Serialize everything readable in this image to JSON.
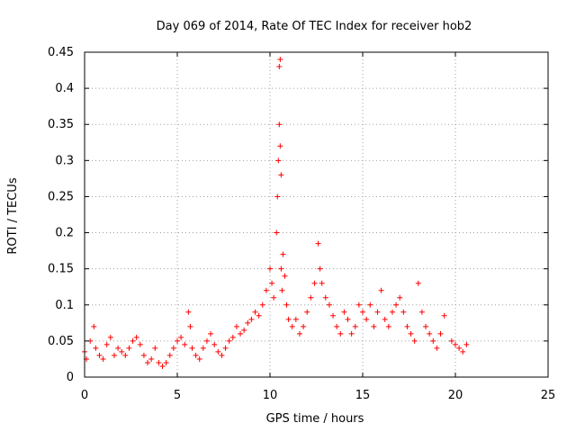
{
  "chart_data": {
    "type": "scatter",
    "title": "Day 069 of 2014, Rate Of TEC Index for receiver hob2",
    "xlabel": "GPS time / hours",
    "ylabel": "ROTI / TECUs",
    "xlim": [
      0,
      25
    ],
    "ylim": [
      0,
      0.45
    ],
    "xticks": [
      "0",
      "5",
      "10",
      "15",
      "20",
      "25"
    ],
    "yticks": [
      "0",
      "0.05",
      "0.1",
      "0.15",
      "0.2",
      "0.25",
      "0.3",
      "0.35",
      "0.4",
      "0.45"
    ],
    "grid": true,
    "marker": "+",
    "color": "#ff0000",
    "series": [
      {
        "name": "ROTI",
        "x": [
          0.0,
          0.1,
          0.3,
          0.5,
          0.6,
          0.8,
          1.0,
          1.2,
          1.4,
          1.6,
          1.8,
          2.0,
          2.2,
          2.4,
          2.6,
          2.8,
          3.0,
          3.2,
          3.4,
          3.6,
          3.8,
          4.0,
          4.2,
          4.4,
          4.6,
          4.8,
          5.0,
          5.2,
          5.4,
          5.6,
          5.7,
          5.8,
          6.0,
          6.2,
          6.4,
          6.6,
          6.8,
          7.0,
          7.2,
          7.4,
          7.6,
          7.8,
          8.0,
          8.2,
          8.4,
          8.6,
          8.8,
          9.0,
          9.2,
          9.4,
          9.6,
          9.8,
          10.0,
          10.1,
          10.2,
          10.35,
          10.4,
          10.45,
          10.5,
          10.5,
          10.55,
          10.55,
          10.6,
          10.6,
          10.65,
          10.7,
          10.8,
          10.9,
          11.0,
          11.2,
          11.4,
          11.6,
          11.8,
          12.0,
          12.2,
          12.4,
          12.6,
          12.7,
          12.8,
          13.0,
          13.2,
          13.4,
          13.6,
          13.8,
          14.0,
          14.2,
          14.4,
          14.6,
          14.8,
          15.0,
          15.2,
          15.4,
          15.6,
          15.8,
          16.0,
          16.2,
          16.4,
          16.6,
          16.8,
          17.0,
          17.2,
          17.4,
          17.6,
          17.8,
          18.0,
          18.2,
          18.4,
          18.6,
          18.8,
          19.0,
          19.2,
          19.4,
          19.8,
          20.0,
          20.2,
          20.4,
          20.6
        ],
        "y": [
          0.035,
          0.025,
          0.05,
          0.07,
          0.04,
          0.03,
          0.025,
          0.045,
          0.055,
          0.03,
          0.04,
          0.035,
          0.03,
          0.04,
          0.05,
          0.055,
          0.045,
          0.03,
          0.02,
          0.025,
          0.04,
          0.02,
          0.015,
          0.02,
          0.03,
          0.04,
          0.05,
          0.055,
          0.045,
          0.09,
          0.07,
          0.04,
          0.03,
          0.025,
          0.04,
          0.05,
          0.06,
          0.045,
          0.035,
          0.03,
          0.04,
          0.05,
          0.055,
          0.07,
          0.06,
          0.065,
          0.075,
          0.08,
          0.09,
          0.085,
          0.1,
          0.12,
          0.15,
          0.13,
          0.11,
          0.2,
          0.25,
          0.3,
          0.35,
          0.43,
          0.44,
          0.32,
          0.28,
          0.15,
          0.12,
          0.17,
          0.14,
          0.1,
          0.08,
          0.07,
          0.08,
          0.06,
          0.07,
          0.09,
          0.11,
          0.13,
          0.185,
          0.15,
          0.13,
          0.11,
          0.1,
          0.085,
          0.07,
          0.06,
          0.09,
          0.08,
          0.06,
          0.07,
          0.1,
          0.09,
          0.08,
          0.1,
          0.07,
          0.09,
          0.12,
          0.08,
          0.07,
          0.09,
          0.1,
          0.11,
          0.09,
          0.07,
          0.06,
          0.05,
          0.13,
          0.09,
          0.07,
          0.06,
          0.05,
          0.04,
          0.06,
          0.085,
          0.05,
          0.045,
          0.04,
          0.035,
          0.045
        ]
      }
    ]
  }
}
